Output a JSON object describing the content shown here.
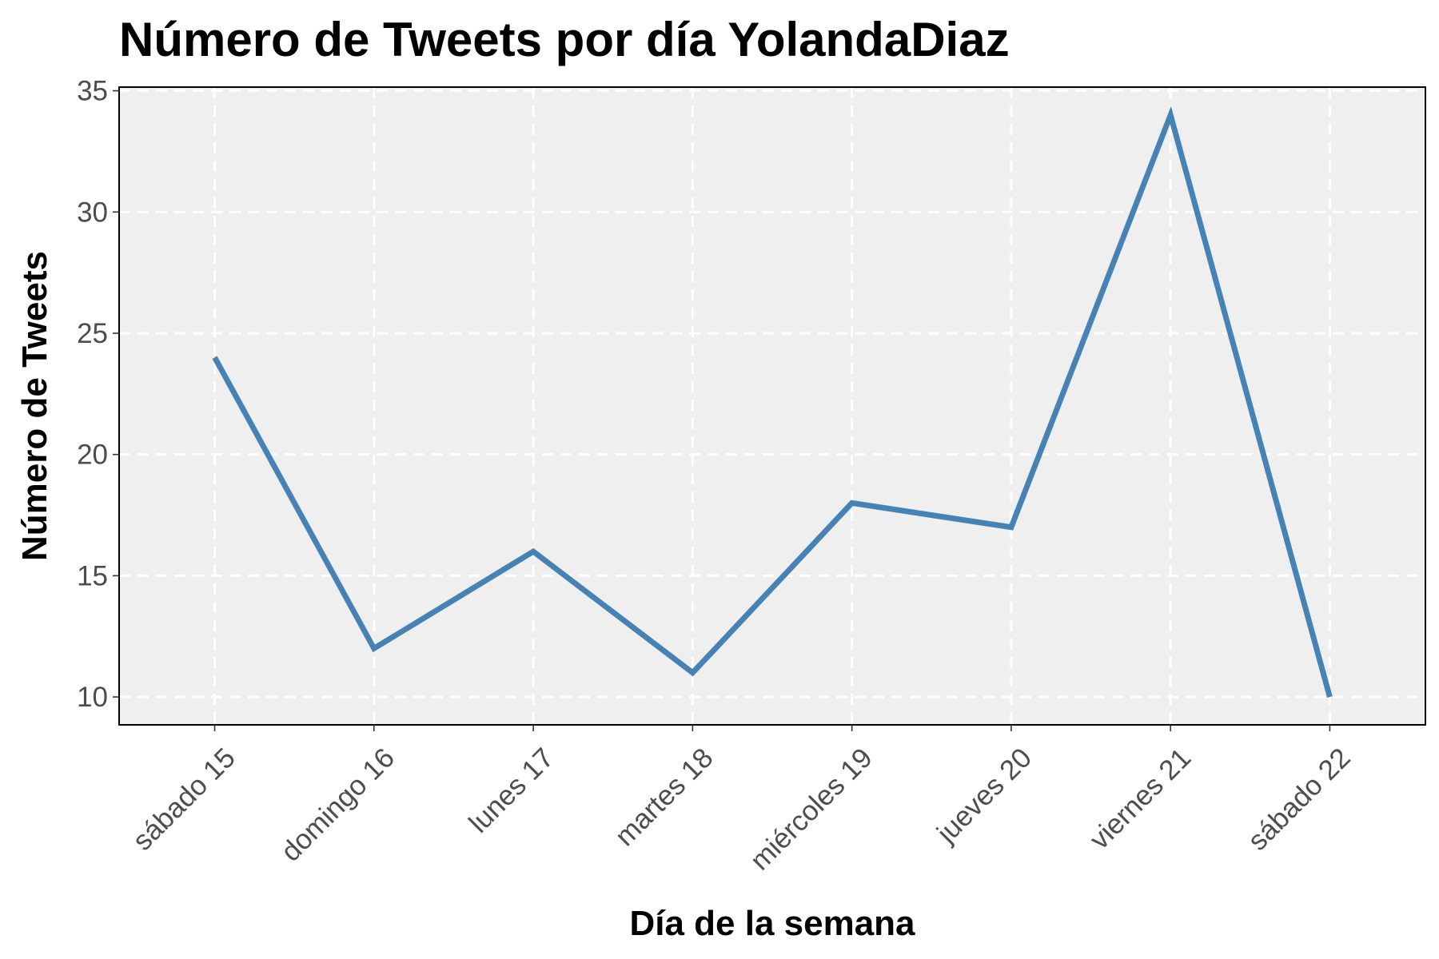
{
  "chart_data": {
    "type": "line",
    "title": "Número de Tweets por día YolandaDiaz",
    "xlabel": "Día de la semana",
    "ylabel": "Número de Tweets",
    "categories": [
      "sábado 15",
      "domingo 16",
      "lunes 17",
      "martes 18",
      "miércoles 19",
      "jueves 20",
      "viernes 21",
      "sábado 22"
    ],
    "series": [
      {
        "values": [
          24,
          12,
          16,
          11,
          18,
          17,
          34,
          10
        ],
        "color": "#4682b4"
      }
    ],
    "ylim": [
      8.85,
      35.15
    ],
    "yticks": [
      10,
      15,
      20,
      25,
      30,
      35
    ],
    "grid": true,
    "panel_background": "#f0eff0",
    "grid_color": "#ffffff",
    "x_tick_rotation": 45
  }
}
